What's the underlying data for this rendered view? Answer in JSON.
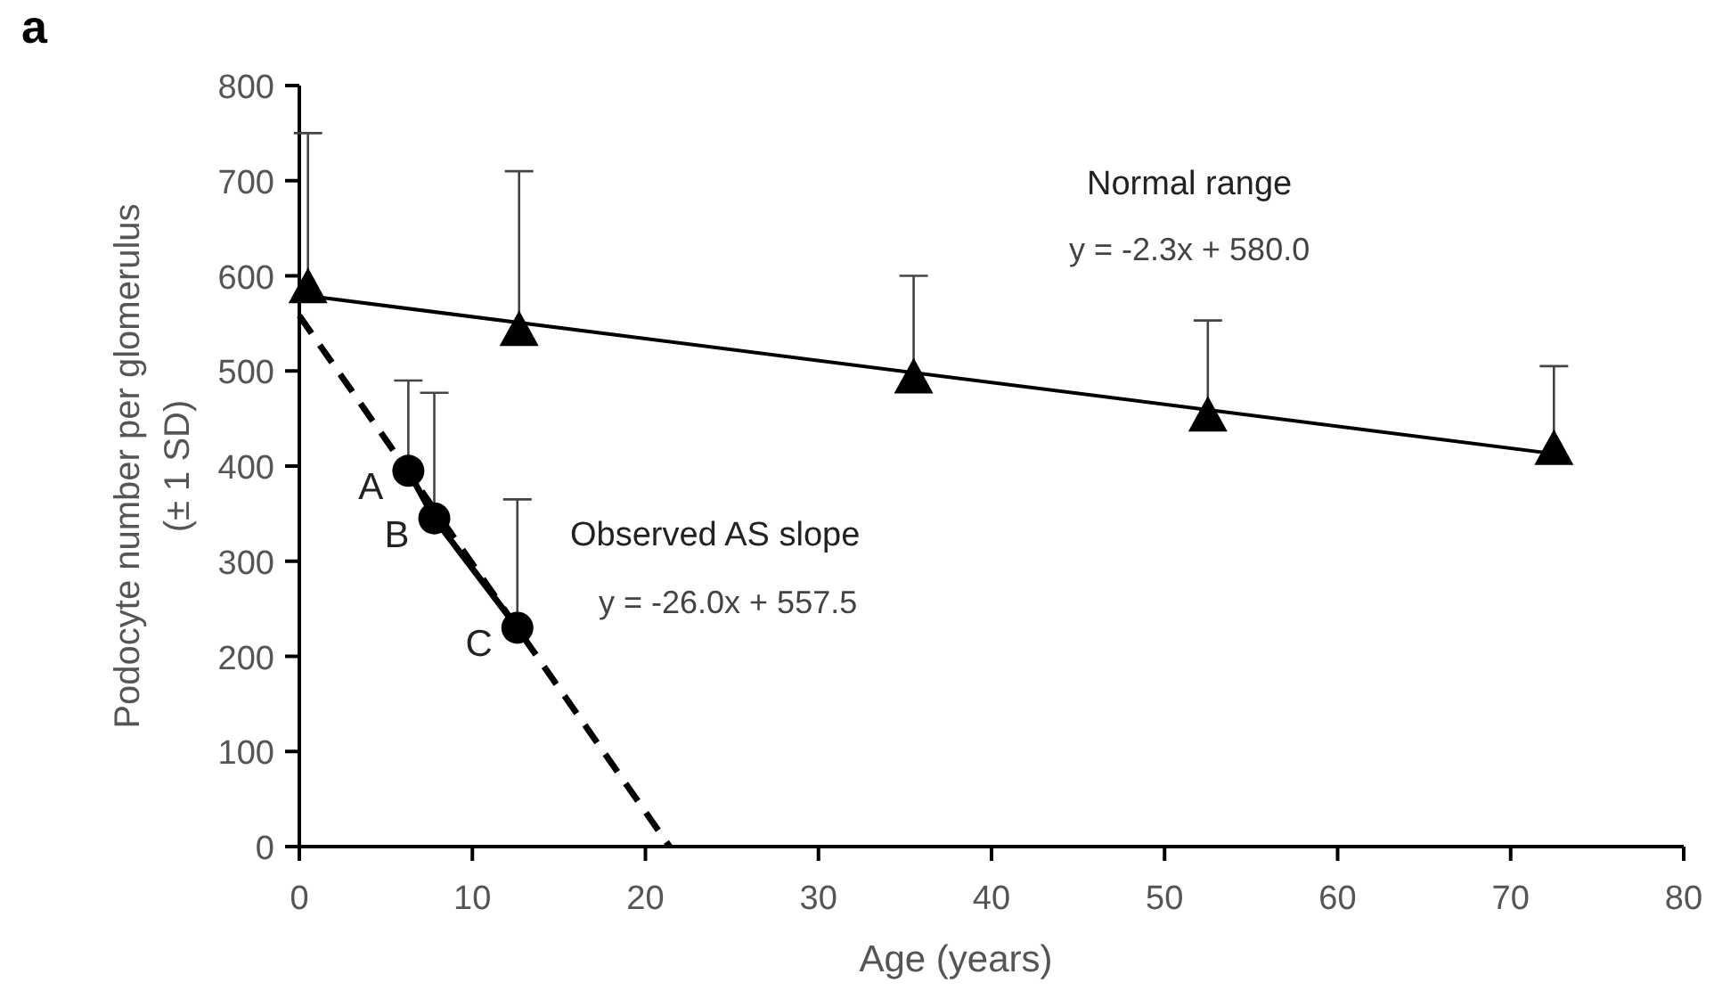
{
  "chart_data": {
    "type": "scatter",
    "xlabel": "Age  (years)",
    "ylabel": "Podocyte number per glomerulus\n(± 1 SD)",
    "xlim": [
      0,
      80
    ],
    "xticks": [
      0,
      10,
      20,
      30,
      40,
      50,
      60,
      70,
      80
    ],
    "ylim": [
      0,
      800
    ],
    "yticks": [
      0,
      100,
      200,
      300,
      400,
      500,
      600,
      700,
      800
    ],
    "grid": false,
    "series": [
      {
        "type": "line",
        "color": "#000000",
        "line_style": "solid",
        "marker": "none",
        "x": [
          0,
          72.5
        ],
        "values": [
          580,
          413
        ]
      },
      {
        "type": "line",
        "color": "#000000",
        "line_style": "dashed",
        "marker": "none",
        "x": [
          0,
          21.4
        ],
        "values": [
          558,
          0
        ]
      },
      {
        "type": "scatter",
        "color": "#000000",
        "marker": "triangle",
        "x": [
          0.5,
          12.7,
          35.5,
          52.5,
          72.5
        ],
        "values": [
          590,
          545,
          495,
          455,
          420
        ],
        "errors": [
          [
            590,
            750
          ],
          [
            545,
            710
          ],
          [
            495,
            600
          ],
          [
            455,
            553
          ],
          [
            420,
            505
          ]
        ]
      },
      {
        "type": "line",
        "color": "#000000",
        "line_style": "solid",
        "marker": "circle",
        "x": [
          6.3,
          7.8,
          12.6
        ],
        "values": [
          395,
          345,
          230
        ],
        "errors": [
          [
            395,
            490
          ],
          [
            345,
            477
          ],
          [
            230,
            365
          ]
        ]
      }
    ],
    "annotations": [
      "a",
      "Normal range",
      "y = -2.3x + 580.0",
      "Observed AS slope",
      "y = -26.0x + 557.5",
      {
        "text": "A",
        "x": 6.3,
        "y": 395
      },
      {
        "text": "B",
        "x": 7.8,
        "y": 345
      },
      {
        "text": "C",
        "x": 12.6,
        "y": 230
      }
    ]
  }
}
